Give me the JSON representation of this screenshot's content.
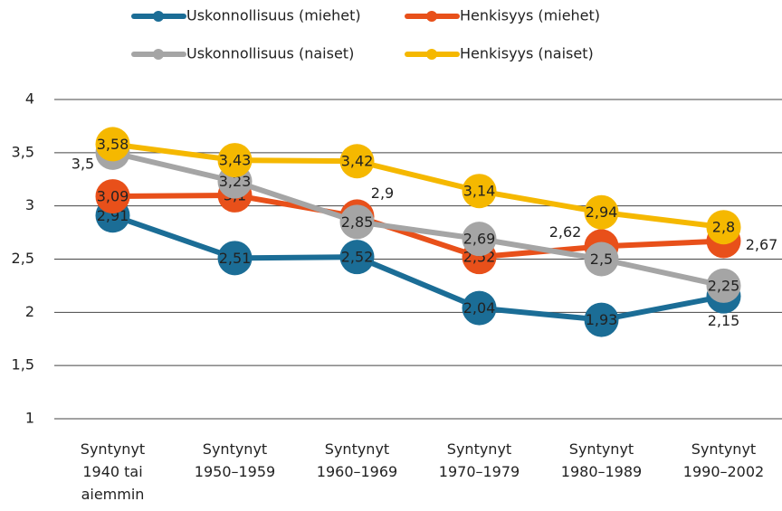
{
  "chart_data": {
    "type": "line",
    "categories": [
      "Syntynyt\n1940 tai\naiemmin",
      "Syntynyt\n1950–1959",
      "Syntynyt\n1960–1969",
      "Syntynyt\n1970–1979",
      "Syntynyt\n1980–1989",
      "Syntynyt\n1990–2002"
    ],
    "series": [
      {
        "name": "Uskonnollisuus (miehet)",
        "color": "#1b6d96",
        "values": [
          2.91,
          2.51,
          2.52,
          2.04,
          1.93,
          2.15
        ],
        "value_labels": [
          "2,91",
          "2,51",
          "2,52",
          "2,04",
          "1,93",
          "2,15"
        ]
      },
      {
        "name": "Henkisyys (miehet)",
        "color": "#e8501a",
        "values": [
          3.09,
          3.1,
          2.9,
          2.52,
          2.62,
          2.67
        ],
        "value_labels": [
          "3,09",
          "3,1",
          "2,9",
          "2,52",
          "2,62",
          "2,67"
        ]
      },
      {
        "name": "Uskonnollisuus (naiset)",
        "color": "#a5a5a5",
        "values": [
          3.5,
          3.23,
          2.85,
          2.69,
          2.5,
          2.25
        ],
        "value_labels": [
          "3,5",
          "3,23",
          "2,85",
          "2,69",
          "2,5",
          "2,25"
        ]
      },
      {
        "name": "Henkisyys (naiset)",
        "color": "#f5b800",
        "values": [
          3.58,
          3.43,
          3.42,
          3.14,
          2.94,
          2.8
        ],
        "value_labels": [
          "3,58",
          "3,43",
          "3,42",
          "3,14",
          "2,94",
          "2,8"
        ]
      }
    ],
    "ylim": [
      1,
      4
    ],
    "yticks": [
      1,
      {
        "value": 1.5,
        "label": "1,5"
      },
      2,
      {
        "value": 2.5,
        "label": "2,5"
      },
      3,
      {
        "value": 3.5,
        "label": "3,5"
      },
      4
    ],
    "grid": true
  }
}
